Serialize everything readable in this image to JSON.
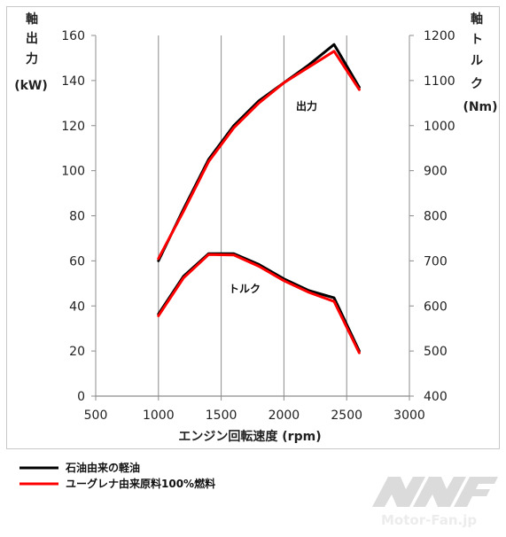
{
  "chart_data": {
    "type": "line",
    "xlabel": "エンジン回転速度 (rpm)",
    "x_ticks": [
      "500",
      "1000",
      "1500",
      "2000",
      "2500",
      "3000"
    ],
    "xlim": [
      500,
      3000
    ],
    "y_left": {
      "label_lines": [
        "軸",
        "出",
        "力",
        "(kW)"
      ],
      "ylim": [
        0,
        160
      ],
      "ticks": [
        "0",
        "20",
        "40",
        "60",
        "80",
        "100",
        "120",
        "140",
        "160"
      ]
    },
    "y_right": {
      "label_lines": [
        "軸",
        "ト",
        "ル",
        "ク",
        "(Nm)"
      ],
      "ylim": [
        400,
        1200
      ],
      "ticks": [
        "400",
        "500",
        "600",
        "700",
        "800",
        "900",
        "1000",
        "1100",
        "1200"
      ]
    },
    "annotations": [
      "出力",
      "トルク"
    ],
    "grid": "vertical",
    "legend_position": "bottom-left",
    "series": [
      {
        "name": "石油由来の軽油",
        "color": "#000000",
        "curves": [
          {
            "quantity": "出力",
            "axis": "left",
            "x": [
              1000,
              1200,
              1400,
              1600,
              1800,
              2000,
              2200,
              2400,
              2600
            ],
            "y": [
              60,
              83,
              105,
              120,
              131,
              139,
              147,
              156,
              137
            ]
          },
          {
            "quantity": "トルク",
            "axis": "right",
            "x": [
              1000,
              1200,
              1400,
              1600,
              1800,
              2000,
              2200,
              2400,
              2600
            ],
            "y": [
              582,
              666,
              716,
              716,
              692,
              660,
              634,
              618,
              500
            ]
          }
        ]
      },
      {
        "name": "ユーグレナ由来原料100%燃料",
        "color": "#ff0000",
        "curves": [
          {
            "quantity": "出力",
            "axis": "left",
            "x": [
              1000,
              1200,
              1400,
              1600,
              1800,
              2000,
              2200,
              2400,
              2600
            ],
            "y": [
              61,
              82,
              104,
              119,
              130,
              139,
              146,
              153,
              136
            ]
          },
          {
            "quantity": "トルク",
            "axis": "right",
            "x": [
              1000,
              1200,
              1400,
              1600,
              1800,
              2000,
              2200,
              2400,
              2600
            ],
            "y": [
              578,
              662,
              714,
              713,
              688,
              656,
              630,
              610,
              496
            ]
          }
        ]
      }
    ]
  },
  "watermark": "Motor-Fan.jp"
}
